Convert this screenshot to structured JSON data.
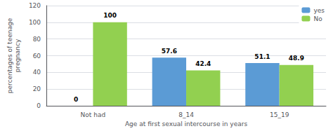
{
  "chart_data": {
    "type": "bar",
    "categories": [
      "Not had",
      "8_14",
      "15_19"
    ],
    "series": [
      {
        "name": "yes",
        "color": "#5B9BD5",
        "values": [
          0,
          57.6,
          51.1
        ]
      },
      {
        "name": "No",
        "color": "#92D050",
        "values": [
          100,
          42.4,
          48.9
        ]
      }
    ],
    "xlabel": "Age at first sexual intercourse in years",
    "ylabel": "percentages of teenage\npregnancy",
    "ylim": [
      0,
      120
    ],
    "yticks": [
      0,
      20,
      40,
      60,
      80,
      100,
      120
    ],
    "grid": true,
    "legend": "upper right",
    "data_labels": true
  }
}
